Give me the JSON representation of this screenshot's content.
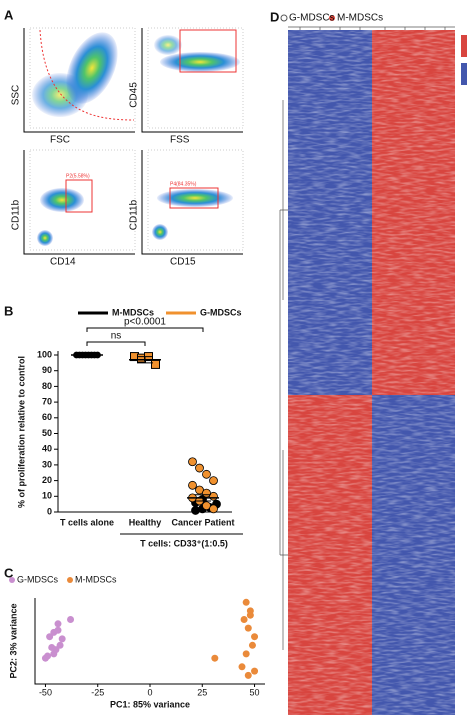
{
  "panel_labels": [
    "A",
    "B",
    "C",
    "D"
  ],
  "flow_plots": [
    {
      "y_label": "SSC",
      "x_label": "FSC"
    },
    {
      "y_label": "CD45",
      "x_label": "FSS"
    },
    {
      "y_label": "CD11b",
      "x_label": "CD14",
      "gate": "P2(5.58%)"
    },
    {
      "y_label": "CD11b",
      "x_label": "CD15",
      "gate": "P4(84.35%)"
    }
  ],
  "chart_data": [
    {
      "type": "dot_plot",
      "y_label": "% of proliferation relative to control",
      "categories": [
        "T cells alone",
        "Healthy",
        "Cancer Patient"
      ],
      "group_label": "T cells: CD33⁺(1:0.5)",
      "group_span": [
        1,
        2
      ],
      "series": [
        {
          "name": "M-MDSCs",
          "color": "#000000",
          "values": [
            [
              100,
              100,
              100,
              100,
              100,
              100,
              100,
              100
            ],
            [],
            [
              1,
              2,
              3,
              5,
              6,
              8
            ]
          ]
        },
        {
          "name": "G-MDSCs",
          "color": "#f0912e",
          "values": [
            [],
            [
              99,
              98,
              99,
              94
            ],
            [
              32,
              28,
              24,
              20,
              17,
              14,
              12,
              10,
              9,
              7,
              4,
              2
            ]
          ]
        }
      ],
      "means": [
        100,
        97,
        9
      ],
      "errors": [
        0.5,
        2,
        2
      ],
      "comparisons": [
        {
          "label": "ns",
          "from": 0,
          "to": 1
        },
        {
          "label": "p<0.0001",
          "from": 0,
          "to": 2
        }
      ],
      "ylim": [
        0,
        100
      ],
      "yticks": [
        0,
        10,
        20,
        30,
        40,
        50,
        60,
        70,
        80,
        90,
        100
      ]
    },
    {
      "type": "scatter",
      "x_label": "PC1: 85% variance",
      "y_label": "PC2: 3% variance",
      "series": [
        {
          "name": "G-MDSCs",
          "color": "#c98fcf",
          "x": [
            -48,
            -46,
            -44,
            -47,
            -45,
            -43,
            -49,
            -46,
            -44,
            -38,
            -50,
            -42
          ],
          "values": [
            2,
            4,
            5,
            -3,
            -4,
            -2,
            -7,
            -6,
            8,
            10,
            -8,
            1
          ]
        },
        {
          "name": "M-MDSCs",
          "color": "#ea8a3a",
          "x": [
            46,
            48,
            45,
            47,
            50,
            49,
            46,
            48,
            31,
            44,
            47,
            50
          ],
          "values": [
            18,
            14,
            10,
            6,
            2,
            -2,
            -6,
            12,
            -8,
            -12,
            -16,
            -14
          ]
        }
      ],
      "xlim": [
        -55,
        55
      ],
      "ylim": [
        -20,
        20
      ],
      "xticks": [
        -50,
        -25,
        0,
        25,
        50
      ]
    }
  ],
  "heatmap": {
    "legend": [
      "G-MDSCs",
      "M-MDSCs"
    ]
  }
}
